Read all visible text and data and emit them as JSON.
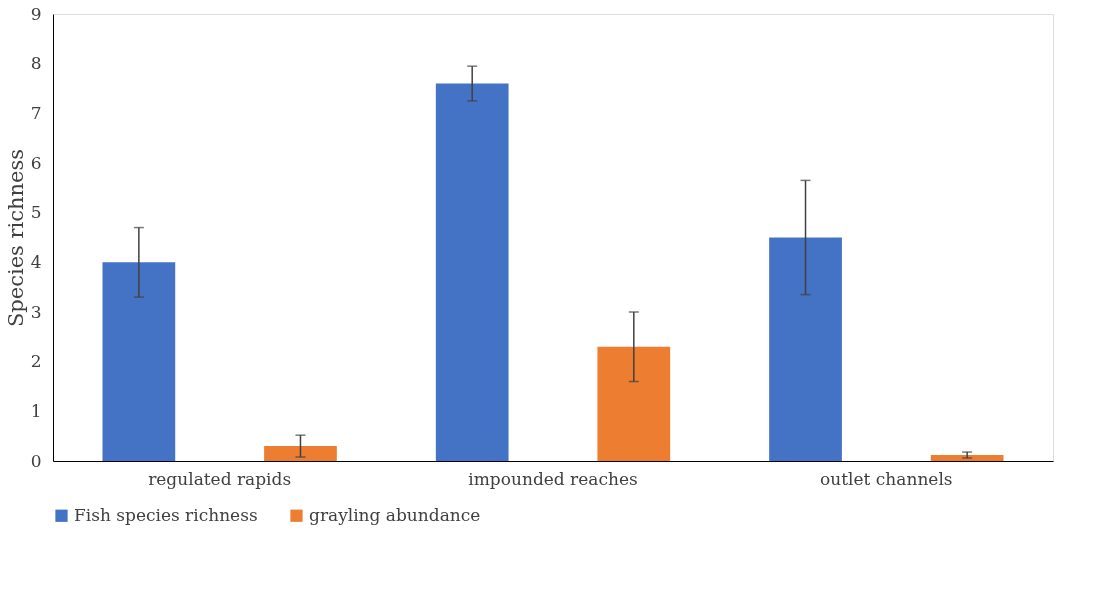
{
  "chart_data": {
    "type": "bar",
    "ylabel": "Species richness",
    "categories": [
      "regulated rapids",
      "impounded reaches",
      "outlet channels"
    ],
    "series": [
      {
        "name": "Fish species richness",
        "color": "#4472c4",
        "values": [
          4.0,
          7.6,
          4.5
        ],
        "errors": [
          0.7,
          0.35,
          1.15
        ]
      },
      {
        "name": "grayling abundance",
        "color": "#ed7d31",
        "values": [
          0.3,
          2.3,
          0.12
        ],
        "errors": [
          0.22,
          0.7,
          0.06
        ]
      }
    ],
    "ylim": [
      0,
      9
    ],
    "yticks": [
      0,
      1,
      2,
      3,
      4,
      5,
      6,
      7,
      8,
      9
    ],
    "grid": false,
    "legend": "bottom"
  }
}
